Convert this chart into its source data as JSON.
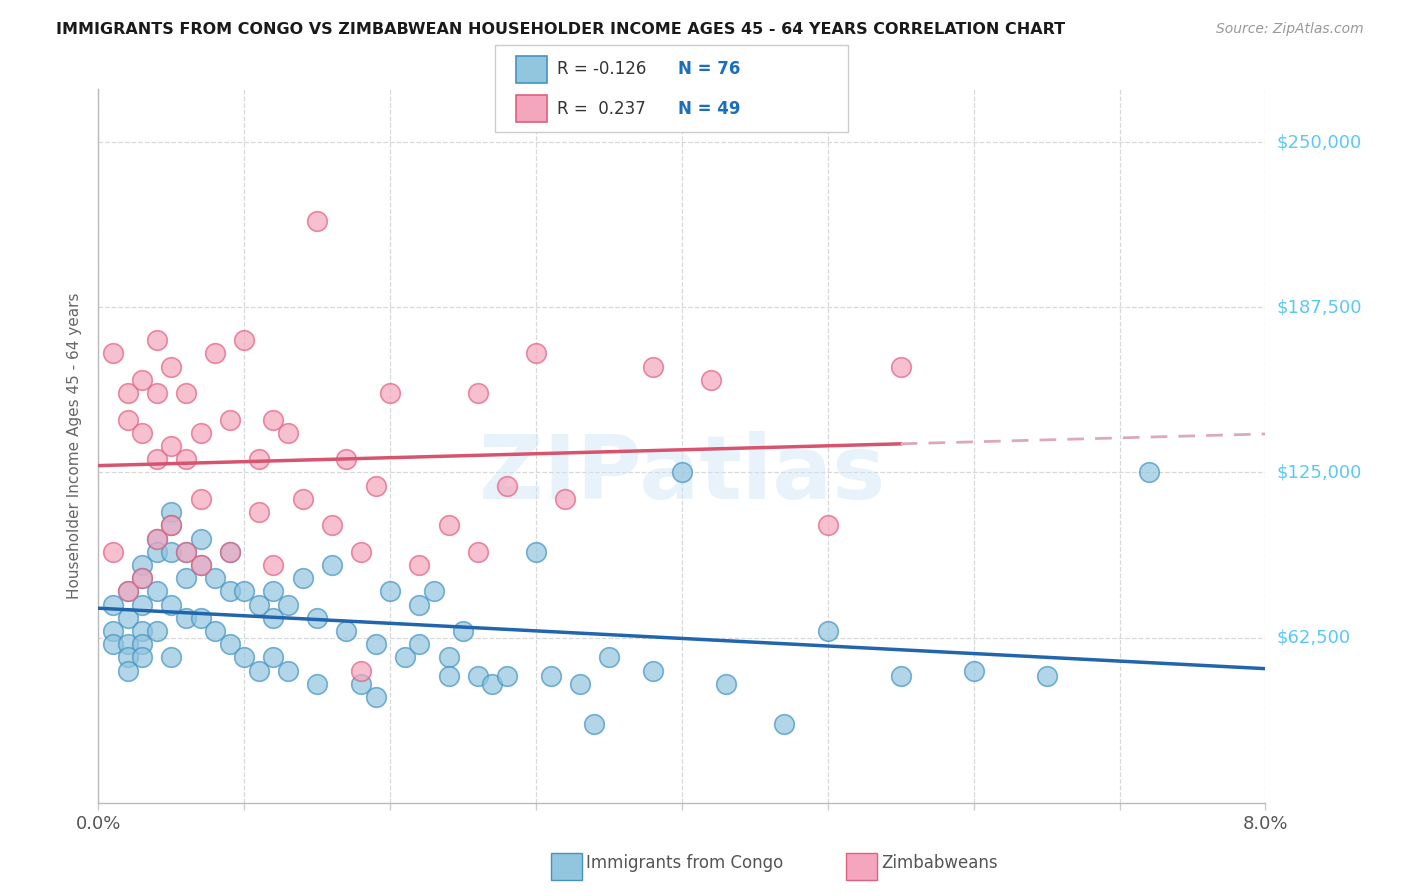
{
  "title": "IMMIGRANTS FROM CONGO VS ZIMBABWEAN HOUSEHOLDER INCOME AGES 45 - 64 YEARS CORRELATION CHART",
  "source": "Source: ZipAtlas.com",
  "ylabel": "Householder Income Ages 45 - 64 years",
  "y_tick_labels": [
    "$62,500",
    "$125,000",
    "$187,500",
    "$250,000"
  ],
  "y_tick_values": [
    62500,
    125000,
    187500,
    250000
  ],
  "y_min": 0,
  "y_max": 270000,
  "x_min": 0.0,
  "x_max": 0.08,
  "congo_color": "#92c5de",
  "zimb_color": "#f4a6be",
  "congo_edge_color": "#4393c3",
  "zimb_edge_color": "#e0607e",
  "congo_line_color": "#2166ac",
  "zimb_line_color": "#d6546e",
  "zimb_dashed_color": "#dbaab8",
  "legend_R_congo": "-0.126",
  "legend_N_congo": "76",
  "legend_R_zimb": "0.237",
  "legend_N_zimb": "49",
  "watermark": "ZIPatlas",
  "grid_color": "#d8d8d8",
  "x_tick_positions": [
    0.0,
    0.01,
    0.02,
    0.03,
    0.04,
    0.05,
    0.06,
    0.07,
    0.08
  ],
  "x_tick_labels_show": [
    "0.0%",
    "",
    "",
    "",
    "",
    "",
    "",
    "",
    "8.0%"
  ],
  "congo_points_x": [
    0.001,
    0.001,
    0.001,
    0.002,
    0.002,
    0.002,
    0.002,
    0.002,
    0.003,
    0.003,
    0.003,
    0.003,
    0.003,
    0.003,
    0.004,
    0.004,
    0.004,
    0.004,
    0.005,
    0.005,
    0.005,
    0.005,
    0.005,
    0.006,
    0.006,
    0.006,
    0.007,
    0.007,
    0.007,
    0.008,
    0.008,
    0.009,
    0.009,
    0.009,
    0.01,
    0.01,
    0.011,
    0.011,
    0.012,
    0.012,
    0.012,
    0.013,
    0.013,
    0.014,
    0.015,
    0.015,
    0.016,
    0.017,
    0.018,
    0.019,
    0.019,
    0.02,
    0.021,
    0.022,
    0.022,
    0.023,
    0.024,
    0.024,
    0.025,
    0.026,
    0.027,
    0.028,
    0.03,
    0.031,
    0.033,
    0.034,
    0.035,
    0.038,
    0.04,
    0.043,
    0.047,
    0.05,
    0.055,
    0.06,
    0.065,
    0.072
  ],
  "congo_points_y": [
    75000,
    65000,
    60000,
    80000,
    70000,
    60000,
    55000,
    50000,
    90000,
    85000,
    75000,
    65000,
    60000,
    55000,
    100000,
    95000,
    80000,
    65000,
    110000,
    105000,
    95000,
    75000,
    55000,
    95000,
    85000,
    70000,
    100000,
    90000,
    70000,
    85000,
    65000,
    95000,
    80000,
    60000,
    80000,
    55000,
    75000,
    50000,
    80000,
    70000,
    55000,
    75000,
    50000,
    85000,
    70000,
    45000,
    90000,
    65000,
    45000,
    60000,
    40000,
    80000,
    55000,
    75000,
    60000,
    80000,
    55000,
    48000,
    65000,
    48000,
    45000,
    48000,
    95000,
    48000,
    45000,
    30000,
    55000,
    50000,
    125000,
    45000,
    30000,
    65000,
    48000,
    50000,
    48000,
    125000
  ],
  "zimb_points_x": [
    0.001,
    0.001,
    0.002,
    0.002,
    0.002,
    0.003,
    0.003,
    0.003,
    0.004,
    0.004,
    0.004,
    0.004,
    0.005,
    0.005,
    0.005,
    0.006,
    0.006,
    0.006,
    0.007,
    0.007,
    0.007,
    0.008,
    0.009,
    0.009,
    0.01,
    0.011,
    0.011,
    0.012,
    0.012,
    0.013,
    0.014,
    0.015,
    0.016,
    0.017,
    0.018,
    0.018,
    0.019,
    0.02,
    0.022,
    0.024,
    0.026,
    0.026,
    0.028,
    0.03,
    0.032,
    0.038,
    0.042,
    0.05,
    0.055
  ],
  "zimb_points_y": [
    170000,
    95000,
    155000,
    145000,
    80000,
    160000,
    140000,
    85000,
    175000,
    155000,
    130000,
    100000,
    165000,
    135000,
    105000,
    155000,
    130000,
    95000,
    140000,
    115000,
    90000,
    170000,
    145000,
    95000,
    175000,
    130000,
    110000,
    145000,
    90000,
    140000,
    115000,
    220000,
    105000,
    130000,
    95000,
    50000,
    120000,
    155000,
    90000,
    105000,
    155000,
    95000,
    120000,
    170000,
    115000,
    165000,
    160000,
    105000,
    165000
  ]
}
